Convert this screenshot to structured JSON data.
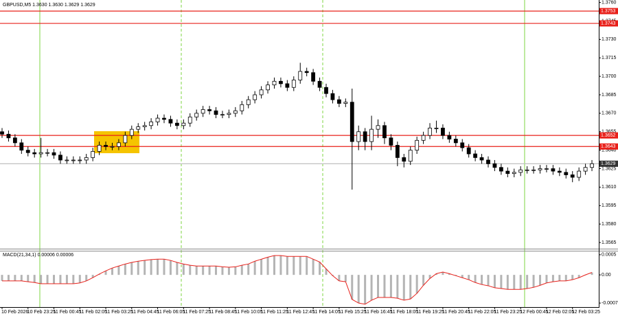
{
  "chart_data": [
    {
      "type": "candlestick",
      "title": "GBPUSD,M5  1.3630 1.3630 1.3629 1.3629",
      "categories": [
        "10 Feb 2026",
        null,
        null,
        null,
        "10 Feb 23:25",
        null,
        null,
        null,
        "11 Feb 00:45",
        null,
        null,
        null,
        "11 Feb 02:05",
        null,
        null,
        null,
        "11 Feb 03:25",
        null,
        null,
        null,
        "11 Feb 04:45",
        null,
        null,
        null,
        "11 Feb 06:05",
        null,
        null,
        null,
        "11 Feb 07:25",
        null,
        null,
        null,
        "11 Feb 08:45",
        null,
        null,
        null,
        "11 Feb 10:05",
        null,
        null,
        null,
        "11 Feb 11:25",
        null,
        null,
        null,
        "11 Feb 12:45",
        null,
        null,
        null,
        "11 Feb 14:05",
        null,
        null,
        null,
        "11 Feb 15:25",
        null,
        null,
        null,
        "11 Feb 16:45",
        null,
        null,
        null,
        "11 Feb 18:05",
        null,
        null,
        null,
        "11 Feb 19:25",
        null,
        null,
        null,
        "11 Feb 20:45",
        null,
        null,
        null,
        "11 Feb 22:05",
        null,
        null,
        null,
        "11 Feb 23:25",
        null,
        null,
        null,
        "12 Feb 00:45",
        null,
        null,
        null,
        "12 Feb 02:05",
        null,
        null,
        null,
        "12 Feb 03:25",
        null,
        null,
        null
      ],
      "open": [
        1.3655,
        1.3653,
        1.365,
        1.3646,
        1.364,
        1.3638,
        1.3637,
        1.3638,
        1.3638,
        1.3636,
        1.3632,
        1.3632,
        1.3632,
        1.3632,
        1.3634,
        1.3639,
        1.3644,
        1.3643,
        1.3643,
        1.3646,
        1.3652,
        1.3657,
        1.3659,
        1.366,
        1.3663,
        1.3666,
        1.3665,
        1.3662,
        1.366,
        1.3662,
        1.3667,
        1.367,
        1.3673,
        1.3672,
        1.3669,
        1.3669,
        1.367,
        1.3672,
        1.3677,
        1.3681,
        1.3685,
        1.3689,
        1.3693,
        1.3696,
        1.3694,
        1.3691,
        1.3697,
        1.3704,
        1.3703,
        1.3696,
        1.3691,
        1.3686,
        1.3681,
        1.3678,
        1.3679,
        1.3647,
        1.3655,
        1.3647,
        1.3657,
        1.366,
        1.365,
        1.3644,
        1.3634,
        1.3631,
        1.364,
        1.3648,
        1.3652,
        1.3658,
        1.3658,
        1.3652,
        1.3649,
        1.3646,
        1.3642,
        1.3637,
        1.3634,
        1.3632,
        1.3629,
        1.3626,
        1.3623,
        1.3621,
        1.3622,
        1.3624,
        1.3624,
        1.3624,
        1.3625,
        1.3625,
        1.3623,
        1.3622,
        1.362,
        1.3618,
        1.3623,
        1.3626
      ],
      "high": [
        1.3658,
        1.3656,
        1.3653,
        1.3649,
        1.3643,
        1.3641,
        1.365,
        1.3641,
        1.3641,
        1.3639,
        1.3635,
        1.3635,
        1.3635,
        1.3637,
        1.3642,
        1.3647,
        1.3647,
        1.3646,
        1.3649,
        1.3655,
        1.366,
        1.3662,
        1.3663,
        1.3666,
        1.3669,
        1.3669,
        1.3668,
        1.3665,
        1.3665,
        1.367,
        1.3673,
        1.3676,
        1.3676,
        1.3675,
        1.3672,
        1.3673,
        1.3675,
        1.368,
        1.3684,
        1.3688,
        1.3692,
        1.3696,
        1.3699,
        1.3699,
        1.3697,
        1.37,
        1.3711,
        1.3707,
        1.3706,
        1.3699,
        1.3694,
        1.3689,
        1.3684,
        1.3682,
        1.369,
        1.366,
        1.3658,
        1.3668,
        1.3665,
        1.3663,
        1.3653,
        1.3647,
        1.3637,
        1.3643,
        1.3651,
        1.3655,
        1.3662,
        1.3664,
        1.3661,
        1.3655,
        1.3652,
        1.3649,
        1.3645,
        1.364,
        1.3637,
        1.3635,
        1.3632,
        1.3629,
        1.3626,
        1.3625,
        1.3627,
        1.3627,
        1.3627,
        1.3628,
        1.3628,
        1.3628,
        1.3626,
        1.3625,
        1.3623,
        1.3626,
        1.3629,
        1.3632
      ],
      "low": [
        1.365,
        1.3647,
        1.3643,
        1.3637,
        1.3635,
        1.3634,
        1.3634,
        1.3635,
        1.3633,
        1.3629,
        1.3629,
        1.3629,
        1.3629,
        1.3629,
        1.3631,
        1.3636,
        1.364,
        1.364,
        1.364,
        1.3643,
        1.3649,
        1.3654,
        1.3656,
        1.3657,
        1.366,
        1.3662,
        1.3659,
        1.3657,
        1.3657,
        1.3659,
        1.3664,
        1.3667,
        1.3669,
        1.3666,
        1.3666,
        1.3666,
        1.3667,
        1.3669,
        1.3674,
        1.3678,
        1.3682,
        1.3686,
        1.369,
        1.3691,
        1.3688,
        1.3688,
        1.3694,
        1.37,
        1.3693,
        1.3688,
        1.3683,
        1.3678,
        1.3675,
        1.3675,
        1.3608,
        1.364,
        1.364,
        1.364,
        1.365,
        1.3645,
        1.364,
        1.3627,
        1.3626,
        1.3628,
        1.3637,
        1.3645,
        1.3649,
        1.3654,
        1.3649,
        1.3646,
        1.3643,
        1.3639,
        1.3634,
        1.3631,
        1.3629,
        1.3626,
        1.3623,
        1.362,
        1.3618,
        1.3618,
        1.3619,
        1.3621,
        1.3621,
        1.3621,
        1.3622,
        1.362,
        1.3619,
        1.3617,
        1.3614,
        1.3615,
        1.362,
        1.3623
      ],
      "close": [
        1.3653,
        1.365,
        1.3646,
        1.364,
        1.3638,
        1.3637,
        1.3638,
        1.3638,
        1.3636,
        1.3632,
        1.3632,
        1.3632,
        1.3632,
        1.3634,
        1.3639,
        1.3644,
        1.3643,
        1.3643,
        1.3646,
        1.3652,
        1.3657,
        1.3659,
        1.366,
        1.3663,
        1.3666,
        1.3665,
        1.3662,
        1.366,
        1.3662,
        1.3667,
        1.367,
        1.3673,
        1.3672,
        1.3669,
        1.3669,
        1.367,
        1.3672,
        1.3677,
        1.3681,
        1.3685,
        1.3689,
        1.3693,
        1.3696,
        1.3694,
        1.3691,
        1.3697,
        1.3704,
        1.3703,
        1.3696,
        1.3691,
        1.3686,
        1.3681,
        1.3678,
        1.3679,
        1.3647,
        1.3655,
        1.3647,
        1.3657,
        1.366,
        1.365,
        1.3644,
        1.3634,
        1.3631,
        1.364,
        1.3648,
        1.3652,
        1.3658,
        1.3658,
        1.3652,
        1.3649,
        1.3646,
        1.3642,
        1.3637,
        1.3634,
        1.3632,
        1.3629,
        1.3626,
        1.3623,
        1.3621,
        1.3622,
        1.3624,
        1.3624,
        1.3624,
        1.3625,
        1.3625,
        1.3623,
        1.3622,
        1.362,
        1.3618,
        1.3623,
        1.3626,
        1.3629
      ],
      "up_color": "#ffffff",
      "down_color": "#000000",
      "ylim": [
        1.356,
        1.3762
      ],
      "yticks": [
        {
          "value": 1.376,
          "label": "1.3760"
        },
        1.3745,
        {
          "value": 1.373,
          "label": "1.3730"
        },
        1.3715,
        {
          "value": 1.37,
          "label": "1.3700"
        },
        1.3685,
        {
          "value": 1.367,
          "label": "1.3670"
        },
        1.3655,
        {
          "value": 1.364,
          "label": "1.3640"
        },
        1.3625,
        {
          "value": 1.361,
          "label": "1.3610"
        },
        1.3595,
        {
          "value": 1.358,
          "label": "1.3580"
        },
        1.3565
      ],
      "levels": [
        {
          "value": 1.3753,
          "color": "#e8201a"
        },
        {
          "value": 1.3743,
          "color": "#e8201a"
        },
        {
          "value": 1.3652,
          "color": "#e8201a"
        },
        {
          "value": 1.3643,
          "color": "#e8201a"
        },
        {
          "value": 1.3629,
          "color": "#c0c0c0"
        }
      ]
    },
    {
      "type": "macd",
      "title": "MACD(21,34,1) 0.00006 0.00006",
      "values": [
        -0.00015,
        -0.00015,
        -0.00015,
        -0.00015,
        -0.00017,
        -0.00019,
        -0.00022,
        -0.00022,
        -0.00022,
        -0.00022,
        -0.00022,
        -0.00022,
        -0.0002,
        -0.00015,
        -7e-05,
        2e-05,
        0.0001,
        0.00017,
        0.00022,
        0.00027,
        0.00031,
        0.00034,
        0.00036,
        0.00038,
        0.00039,
        0.00039,
        0.00036,
        0.00031,
        0.00027,
        0.00024,
        0.00022,
        0.00022,
        0.00022,
        0.00022,
        0.0002,
        0.00019,
        0.0002,
        0.00024,
        0.00027,
        0.00034,
        0.00039,
        0.00044,
        0.00048,
        0.00048,
        0.00046,
        0.00046,
        0.00046,
        0.00046,
        0.00039,
        0.00032,
        0.00015,
        -2e-05,
        -0.00015,
        -0.00017,
        -0.00061,
        -0.0007,
        -0.00073,
        -0.00063,
        -0.00056,
        -0.00056,
        -0.00056,
        -0.00058,
        -0.00063,
        -0.0006,
        -0.00046,
        -0.00026,
        -9e-05,
        3e-05,
        7e-05,
        3e-05,
        -2e-05,
        -7e-05,
        -0.00012,
        -0.00019,
        -0.00024,
        -0.00027,
        -0.00032,
        -0.00034,
        -0.00036,
        -0.00036,
        -0.00036,
        -0.00034,
        -0.00031,
        -0.00026,
        -0.0002,
        -0.00017,
        -0.00015,
        -0.00015,
        -0.00012,
        -7e-05,
        0,
        6e-05
      ],
      "bar_color": "#b4b4b4",
      "line_color": "#e8201a",
      "ylim": [
        -0.0008,
        0.0006
      ],
      "yticks": [
        0.0005,
        {
          "value": 0,
          "label": "0.00"
        },
        -0.0007
      ]
    }
  ]
}
